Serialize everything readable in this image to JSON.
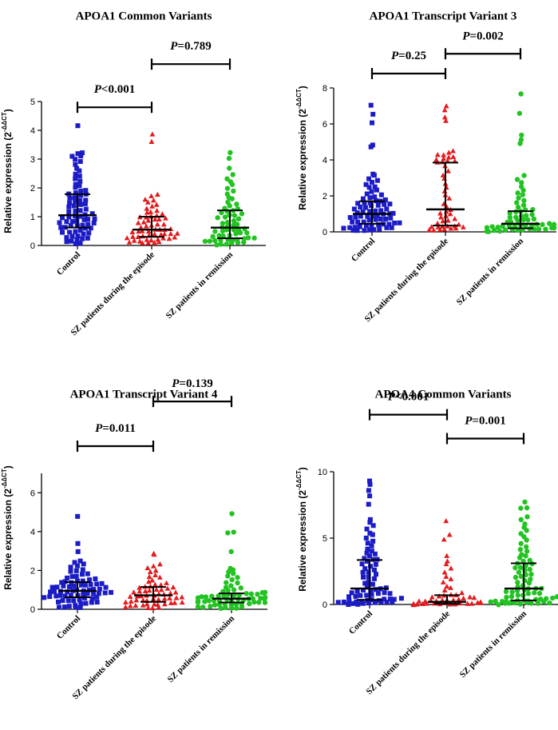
{
  "figure_label": "APOA1 / APOA4 relative expression scatter plots",
  "colors": {
    "control": "#1c1cc6",
    "episode": "#e41a1c",
    "remission": "#22c322",
    "axis": "#000000"
  },
  "chart_data": [
    {
      "type": "scatter",
      "title": "APOA1 Common Variants",
      "ylabel": "Relative expression (2",
      "ylabel_sup": "-ΔΔCT",
      "ylabel_close": ")",
      "ylim": [
        0,
        5
      ],
      "yticks": [
        "0",
        "1",
        "2",
        "3",
        "4",
        "5"
      ],
      "ytick_values": [
        0,
        1,
        2,
        3,
        4,
        5
      ],
      "categories": [
        "Control",
        "SZ patients during the episode",
        "SZ patients in remission"
      ],
      "series": [
        {
          "name": "Control",
          "marker": "square",
          "median": 1.05,
          "q1": 0.62,
          "q3": 1.78,
          "n": 75,
          "min": 0.05,
          "max": 3.3,
          "outliers": [
            4.15,
            3.2,
            3.1
          ]
        },
        {
          "name": "SZ patients during the episode",
          "marker": "triangle",
          "median": 0.55,
          "q1": 0.3,
          "q3": 1.0,
          "n": 60,
          "min": 0.05,
          "max": 1.8,
          "outliers": [
            3.85,
            3.6
          ]
        },
        {
          "name": "SZ patients in remission",
          "marker": "circle",
          "median": 0.62,
          "q1": 0.25,
          "q3": 1.22,
          "n": 62,
          "min": 0.02,
          "max": 2.5,
          "outliers": [
            3.25,
            3.0,
            2.7
          ]
        }
      ],
      "comparisons": [
        {
          "groups": [
            0,
            1
          ],
          "italic": "P",
          "text": "<0.001",
          "level": 4.8
        },
        {
          "groups": [
            1,
            2
          ],
          "italic": "P",
          "text": "=0.789",
          "level": 6.3
        }
      ]
    },
    {
      "type": "scatter",
      "title": "APOA1 Transcript Variant 3",
      "ylabel": "Relative expression (2",
      "ylabel_sup": "-ΔΔCT",
      "ylabel_close": ")",
      "ylim": [
        0,
        8
      ],
      "yticks": [
        "0",
        "2",
        "4",
        "6",
        "8"
      ],
      "ytick_values": [
        0,
        2,
        4,
        6,
        8
      ],
      "categories": [
        "Control",
        "SZ patients during the episode",
        "SZ patients in remission"
      ],
      "series": [
        {
          "name": "Control",
          "marker": "square",
          "median": 1.0,
          "q1": 0.45,
          "q3": 1.7,
          "n": 75,
          "min": 0.05,
          "max": 3.3,
          "outliers": [
            7.0,
            6.5,
            6.1,
            4.8,
            4.7
          ]
        },
        {
          "name": "SZ patients during the episode",
          "marker": "triangle",
          "median": 1.25,
          "q1": 0.35,
          "q3": 3.85,
          "n": 50,
          "min": 0.05,
          "max": 4.5,
          "outliers": [
            7.0,
            6.8,
            6.4,
            6.2
          ]
        },
        {
          "name": "SZ patients in remission",
          "marker": "circle",
          "median": 0.45,
          "q1": 0.2,
          "q3": 1.15,
          "n": 62,
          "min": 0.02,
          "max": 3.2,
          "outliers": [
            7.7,
            6.6,
            5.4,
            5.1,
            4.9
          ]
        }
      ],
      "comparisons": [
        {
          "groups": [
            0,
            1
          ],
          "italic": "P",
          "text": "=0.25",
          "level": 8.8
        },
        {
          "groups": [
            1,
            2
          ],
          "italic": "P",
          "text": "=0.002",
          "level": 9.9
        }
      ]
    },
    {
      "type": "scatter",
      "title": "APOA1 Transcript Variant 4",
      "ylabel": "Relative expression (2",
      "ylabel_sup": "-ΔΔCT",
      "ylabel_close": ")",
      "ylim": [
        0,
        7
      ],
      "yticks": [
        "0",
        "2",
        "4",
        "6"
      ],
      "ytick_values": [
        0,
        2,
        4,
        6
      ],
      "categories": [
        "Control",
        "SZ patients during the episode",
        "SZ patients in remission"
      ],
      "series": [
        {
          "name": "Control",
          "marker": "square",
          "median": 0.95,
          "q1": 0.62,
          "q3": 1.4,
          "n": 75,
          "min": 0.05,
          "max": 2.5,
          "outliers": [
            4.8,
            3.4,
            3.0
          ]
        },
        {
          "name": "SZ patients during the episode",
          "marker": "triangle",
          "median": 0.72,
          "q1": 0.38,
          "q3": 1.15,
          "n": 60,
          "min": 0.05,
          "max": 2.4,
          "outliers": [
            2.9,
            2.8
          ]
        },
        {
          "name": "SZ patients in remission",
          "marker": "circle",
          "median": 0.55,
          "q1": 0.35,
          "q3": 0.82,
          "n": 70,
          "min": 0.02,
          "max": 2.2,
          "outliers": [
            4.9,
            4.0,
            3.9,
            3.0
          ]
        }
      ],
      "comparisons": [
        {
          "groups": [
            0,
            1
          ],
          "italic": "P",
          "text": "=0.011",
          "level": 8.4
        },
        {
          "groups": [
            1,
            2
          ],
          "italic": "P",
          "text": "=0.139",
          "level": 10.7
        }
      ]
    },
    {
      "type": "scatter",
      "title": "APOA4 Common Variants",
      "ylabel": "Relative expression (2",
      "ylabel_sup": "-ΔΔCT",
      "ylabel_close": ")",
      "ylim": [
        0,
        10
      ],
      "yticks": [
        "0",
        "5",
        "10"
      ],
      "ytick_values": [
        0,
        5,
        10
      ],
      "categories": [
        "Control",
        "SZ patients during the episode",
        "SZ patients in remission"
      ],
      "series": [
        {
          "name": "Control",
          "marker": "square",
          "median": 1.2,
          "q1": 0.35,
          "q3": 3.35,
          "n": 75,
          "min": 0.02,
          "max": 6.5,
          "outliers": [
            9.3,
            9.0,
            8.6,
            8.2,
            7.6
          ]
        },
        {
          "name": "SZ patients during the episode",
          "marker": "triangle",
          "median": 0.2,
          "q1": 0.05,
          "q3": 0.7,
          "n": 55,
          "min": 0.0,
          "max": 3.8,
          "outliers": [
            6.3,
            5.2,
            4.9
          ]
        },
        {
          "name": "SZ patients in remission",
          "marker": "circle",
          "median": 1.2,
          "q1": 0.3,
          "q3": 3.1,
          "n": 75,
          "min": 0.02,
          "max": 6.8,
          "outliers": [
            7.7,
            7.3,
            7.2
          ]
        }
      ],
      "comparisons": [
        {
          "groups": [
            0,
            1
          ],
          "italic": "P",
          "text": "<0.001",
          "level": 14.3
        },
        {
          "groups": [
            1,
            2
          ],
          "italic": "P",
          "text": "=0.001",
          "level": 12.5
        }
      ]
    }
  ]
}
